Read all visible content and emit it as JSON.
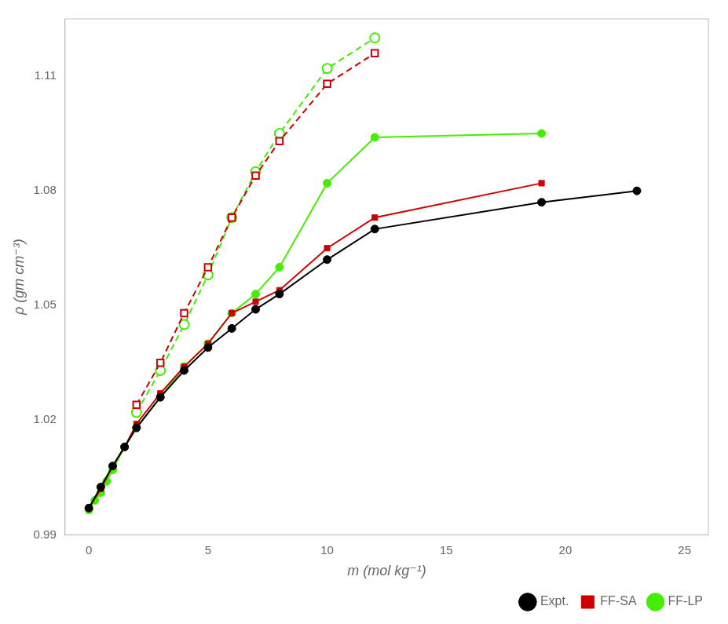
{
  "chart_data": {
    "type": "line",
    "xlabel": "m (mol kg⁻¹)",
    "ylabel": "ρ (gm cm⁻³)",
    "xlim": [
      -1,
      26
    ],
    "ylim": [
      0.99,
      1.125
    ],
    "xticks": [
      0,
      5,
      10,
      15,
      20,
      25
    ],
    "yticks": [
      0.99,
      1.02,
      1.05,
      1.08,
      1.11
    ],
    "grid": false,
    "legend": "lower right",
    "series": [
      {
        "name": "Expt.",
        "color": "#000000",
        "marker": "circle",
        "line_style": "solid",
        "x": [
          0.0,
          0.5,
          1.0,
          1.5,
          2.0,
          3.0,
          4.0,
          5.0,
          6.0,
          7.0,
          8.0,
          10.0,
          12.0,
          19.0,
          23.0
        ],
        "values": [
          0.997,
          1.0025,
          1.008,
          1.013,
          1.018,
          1.026,
          1.033,
          1.039,
          1.044,
          1.049,
          1.053,
          1.062,
          1.07,
          1.077,
          1.08
        ]
      },
      {
        "name": "FF-SA",
        "color": "#cc0000",
        "marker": "square",
        "line_style": "solid",
        "x": [
          0.0,
          0.5,
          1.0,
          1.5,
          2.0,
          3.0,
          4.0,
          5.0,
          6.0,
          7.0,
          8.0,
          10.0,
          12.0,
          19.0
        ],
        "values": [
          0.997,
          1.002,
          1.008,
          1.013,
          1.019,
          1.027,
          1.034,
          1.04,
          1.048,
          1.051,
          1.054,
          1.065,
          1.073,
          1.082
        ]
      },
      {
        "color": "#cc0000",
        "marker": "open_square",
        "line_style": "dashed",
        "x": [
          2.0,
          3.0,
          4.0,
          5.0,
          6.0,
          7.0,
          8.0,
          10.0,
          12.0
        ],
        "values": [
          1.024,
          1.035,
          1.048,
          1.06,
          1.073,
          1.084,
          1.093,
          1.108,
          1.116
        ]
      },
      {
        "name": "FF-LP",
        "color": "#44ee00",
        "marker": "circle",
        "line_style": "solid",
        "x": [
          0.0,
          0.25,
          0.5,
          0.75,
          1.0,
          1.5,
          2.0,
          3.0,
          4.0,
          5.0,
          6.0,
          7.0,
          8.0,
          10.0,
          12.0,
          19.0
        ],
        "values": [
          0.9965,
          0.999,
          1.001,
          1.004,
          1.007,
          1.013,
          1.018,
          1.026,
          1.034,
          1.04,
          1.048,
          1.053,
          1.06,
          1.082,
          1.094,
          1.095
        ]
      },
      {
        "color": "#44ee00",
        "marker": "open_circle",
        "line_style": "dashed",
        "x": [
          2.0,
          3.0,
          4.0,
          5.0,
          6.0,
          7.0,
          8.0,
          10.0,
          12.0
        ],
        "values": [
          1.022,
          1.033,
          1.045,
          1.058,
          1.073,
          1.085,
          1.095,
          1.112,
          1.12
        ]
      }
    ]
  }
}
